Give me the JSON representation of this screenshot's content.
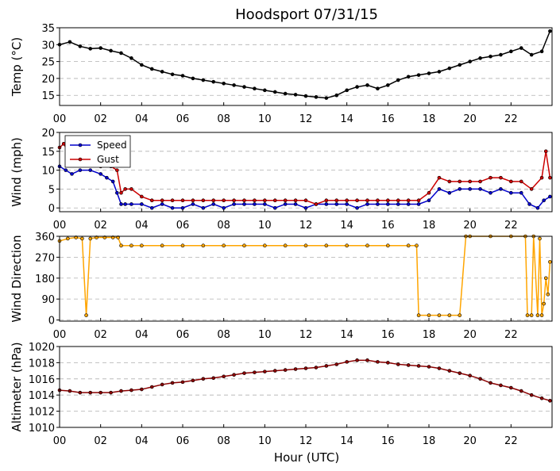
{
  "chart_data": {
    "type": "line",
    "title": "Hoodsport 07/31/15",
    "xlabel": "Hour (UTC)",
    "x_unit": "hours UTC",
    "xlim": [
      0,
      24
    ],
    "x_tick_labels": [
      "00",
      "02",
      "04",
      "06",
      "08",
      "10",
      "12",
      "14",
      "16",
      "18",
      "20",
      "22"
    ],
    "colors": {
      "temp": "#000000",
      "speed": "#0000cc",
      "gust": "#cc0000",
      "direction": "#ffa500",
      "altimeter": "#8b0000",
      "grid": "#b0b0b0"
    },
    "panels": [
      {
        "id": "temp",
        "ylabel": "Temp (°C)",
        "ylim": [
          12,
          35
        ],
        "y_ticks": [
          15,
          20,
          25,
          30,
          35
        ],
        "grid": true,
        "series": [
          {
            "key": "temp",
            "x": [
              0,
              0.5,
              1,
              1.5,
              2,
              2.5,
              3,
              3.5,
              4,
              4.5,
              5,
              5.5,
              6,
              6.5,
              7,
              7.5,
              8,
              8.5,
              9,
              9.5,
              10,
              10.5,
              11,
              11.5,
              12,
              12.5,
              13,
              13.5,
              14,
              14.5,
              15,
              15.5,
              16,
              16.5,
              17,
              17.5,
              18,
              18.5,
              19,
              19.5,
              20,
              20.5,
              21,
              21.5,
              22,
              22.5,
              23,
              23.5,
              23.9
            ],
            "y": [
              30,
              30.8,
              29.5,
              28.8,
              29,
              28.2,
              27.5,
              26,
              24,
              22.8,
              22,
              21.2,
              20.8,
              20,
              19.5,
              19,
              18.5,
              18,
              17.5,
              17,
              16.5,
              16,
              15.5,
              15.2,
              14.8,
              14.5,
              14.2,
              15,
              16.5,
              17.5,
              18,
              17,
              18,
              19.5,
              20.5,
              21,
              21.5,
              22,
              23,
              24,
              25,
              26,
              26.5,
              27,
              28,
              29,
              27,
              28,
              34
            ]
          }
        ]
      },
      {
        "id": "wind",
        "ylabel": "Wind (mph)",
        "ylim": [
          -1,
          20
        ],
        "y_ticks": [
          0,
          5,
          10,
          15,
          20
        ],
        "grid": true,
        "legend": {
          "placement": "upper-left",
          "entries": [
            {
              "label": "Speed",
              "key": "speed"
            },
            {
              "label": "Gust",
              "key": "gust"
            }
          ]
        },
        "series": [
          {
            "key": "speed",
            "name": "Speed",
            "x": [
              0,
              0.3,
              0.6,
              1,
              1.5,
              2,
              2.3,
              2.6,
              2.8,
              3,
              3.2,
              3.5,
              4,
              4.5,
              5,
              5.5,
              6,
              6.5,
              7,
              7.5,
              8,
              8.5,
              9,
              9.5,
              10,
              10.5,
              11,
              11.5,
              12,
              12.5,
              13,
              13.5,
              14,
              14.5,
              15,
              15.5,
              16,
              16.5,
              17,
              17.5,
              18,
              18.5,
              19,
              19.5,
              20,
              20.5,
              21,
              21.5,
              22,
              22.5,
              22.9,
              23.3,
              23.6,
              23.9
            ],
            "y": [
              11,
              10,
              9,
              10,
              10,
              9,
              8,
              7,
              4,
              1,
              1,
              1,
              1,
              0,
              1,
              0,
              0,
              1,
              0,
              1,
              0,
              1,
              1,
              1,
              1,
              0,
              1,
              1,
              0,
              1,
              1,
              1,
              1,
              0,
              1,
              1,
              1,
              1,
              1,
              1,
              2,
              5,
              4,
              5,
              5,
              5,
              4,
              5,
              4,
              4,
              1,
              0,
              2,
              3
            ]
          },
          {
            "key": "gust",
            "name": "Gust",
            "x": [
              0,
              0.2,
              0.5,
              1,
              1.5,
              2,
              2.5,
              2.8,
              3,
              3.2,
              3.5,
              4,
              4.5,
              5,
              5.5,
              6,
              6.5,
              7,
              7.5,
              8,
              8.5,
              9,
              9.5,
              10,
              10.5,
              11,
              11.5,
              12,
              12.5,
              13,
              13.5,
              14,
              14.5,
              15,
              15.5,
              16,
              16.5,
              17,
              17.5,
              18,
              18.5,
              19,
              19.5,
              20,
              20.5,
              21,
              21.5,
              22,
              22.5,
              23,
              23.5,
              23.7,
              23.9
            ],
            "y": [
              16,
              17,
              14,
              13,
              12,
              11,
              11,
              10,
              4,
              5,
              5,
              3,
              2,
              2,
              2,
              2,
              2,
              2,
              2,
              2,
              2,
              2,
              2,
              2,
              2,
              2,
              2,
              2,
              1,
              2,
              2,
              2,
              2,
              2,
              2,
              2,
              2,
              2,
              2,
              4,
              8,
              7,
              7,
              7,
              7,
              8,
              8,
              7,
              7,
              5,
              8,
              15,
              8
            ]
          }
        ]
      },
      {
        "id": "dir",
        "ylabel": "Wind Direction",
        "ylim": [
          -5,
          360
        ],
        "y_ticks": [
          0,
          90,
          180,
          270,
          360
        ],
        "grid": true,
        "series": [
          {
            "key": "direction",
            "x": [
              0,
              0.4,
              0.8,
              1.1,
              1.3,
              1.5,
              1.8,
              2.2,
              2.6,
              2.85,
              3,
              3.5,
              4,
              5,
              6,
              7,
              8,
              9,
              10,
              11,
              12,
              13,
              14,
              15,
              16,
              17,
              17.4,
              17.5,
              18,
              18.5,
              19,
              19.5,
              19.8,
              20,
              21,
              22,
              22.7,
              22.8,
              23,
              23.1,
              23.3,
              23.4,
              23.5,
              23.6,
              23.7,
              23.8,
              23.9
            ],
            "y": [
              340,
              350,
              355,
              350,
              20,
              350,
              355,
              355,
              355,
              355,
              320,
              320,
              320,
              320,
              320,
              320,
              320,
              320,
              320,
              320,
              320,
              320,
              320,
              320,
              320,
              320,
              320,
              20,
              20,
              20,
              20,
              20,
              360,
              360,
              360,
              360,
              360,
              20,
              20,
              360,
              20,
              350,
              20,
              70,
              180,
              110,
              250
            ]
          }
        ]
      },
      {
        "id": "alt",
        "ylabel": "Altimeter (hPa)",
        "ylim": [
          1010,
          1020
        ],
        "y_ticks": [
          1010,
          1012,
          1014,
          1016,
          1018,
          1020
        ],
        "grid": true,
        "series": [
          {
            "key": "altimeter",
            "x": [
              0,
              0.5,
              1,
              1.5,
              2,
              2.5,
              3,
              3.5,
              4,
              4.5,
              5,
              5.5,
              6,
              6.5,
              7,
              7.5,
              8,
              8.5,
              9,
              9.5,
              10,
              10.5,
              11,
              11.5,
              12,
              12.5,
              13,
              13.5,
              14,
              14.5,
              15,
              15.5,
              16,
              16.5,
              17,
              17.5,
              18,
              18.5,
              19,
              19.5,
              20,
              20.5,
              21,
              21.5,
              22,
              22.5,
              23,
              23.5,
              23.9
            ],
            "y": [
              1014.6,
              1014.5,
              1014.3,
              1014.3,
              1014.3,
              1014.3,
              1014.5,
              1014.6,
              1014.7,
              1015,
              1015.3,
              1015.5,
              1015.6,
              1015.8,
              1016,
              1016.1,
              1016.3,
              1016.5,
              1016.7,
              1016.8,
              1016.9,
              1017,
              1017.1,
              1017.2,
              1017.3,
              1017.4,
              1017.6,
              1017.8,
              1018.1,
              1018.3,
              1018.3,
              1018.1,
              1018,
              1017.8,
              1017.7,
              1017.6,
              1017.5,
              1017.3,
              1017,
              1016.7,
              1016.4,
              1016,
              1015.5,
              1015.2,
              1014.9,
              1014.5,
              1014,
              1013.6,
              1013.3
            ]
          }
        ]
      }
    ]
  }
}
